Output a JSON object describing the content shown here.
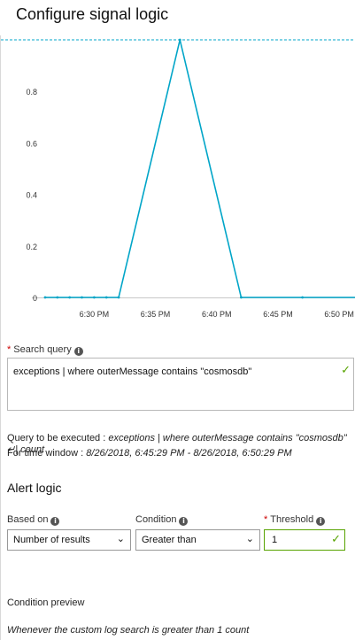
{
  "panel": {
    "title": "Configure signal logic"
  },
  "chart_data": {
    "type": "line",
    "x": [
      "6:26 PM",
      "6:27 PM",
      "6:28 PM",
      "6:29 PM",
      "6:30 PM",
      "6:31 PM",
      "6:32 PM",
      "6:37 PM",
      "6:42 PM",
      "6:47 PM",
      "6:52 PM"
    ],
    "y": [
      0,
      0,
      0,
      0,
      0,
      0,
      0,
      1,
      0,
      0,
      0
    ],
    "x_minutes": [
      -4,
      -3,
      -2,
      -1,
      0,
      1,
      2,
      7,
      12,
      17,
      22
    ],
    "xticks": [
      "6:30 PM",
      "6:35 PM",
      "6:40 PM",
      "6:45 PM",
      "6:50 PM"
    ],
    "xtick_minutes": [
      0,
      5,
      10,
      15,
      20
    ],
    "yticks": [
      "0",
      "0.2",
      "0.4",
      "0.6",
      "0.8"
    ],
    "ytick_values": [
      0,
      0.2,
      0.4,
      0.6,
      0.8
    ],
    "ylim": [
      0,
      1
    ],
    "threshold": 1,
    "line_color": "#00a5c8",
    "threshold_color": "#00a5c8"
  },
  "search": {
    "label": "Search query",
    "value": "exceptions | where outerMessage contains \"cosmosdb\""
  },
  "query_info": {
    "executed_label": "Query to be executed :",
    "executed_value": "exceptions | where outerMessage contains \"cosmosdb\" ↵| count",
    "window_label": "For time window :",
    "window_value": "8/26/2018, 6:45:29 PM - 8/26/2018, 6:50:29 PM"
  },
  "alert_logic": {
    "title": "Alert logic",
    "based_on_label": "Based on",
    "based_on_value": "Number of results",
    "condition_label": "Condition",
    "condition_value": "Greater than",
    "threshold_label": "Threshold",
    "threshold_value": "1"
  },
  "preview": {
    "title": "Condition preview",
    "text": "Whenever the custom log search is greater than 1 count"
  },
  "colors": {
    "accent": "#00a5c8",
    "valid": "#57a300",
    "required": "#cc0000"
  }
}
